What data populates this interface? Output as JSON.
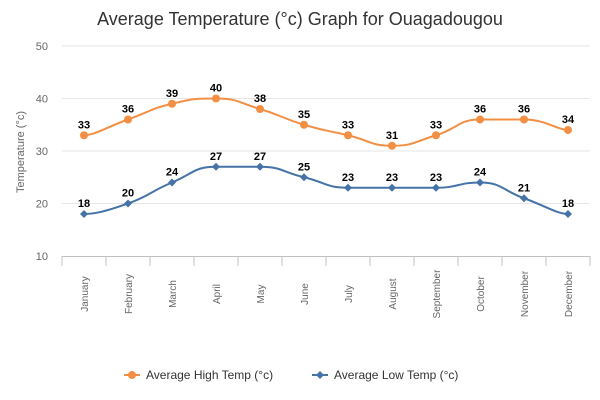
{
  "chart_data": {
    "type": "line",
    "title": "Average Temperature (°c) Graph for Ouagadougou",
    "xlabel": "",
    "ylabel": "Temperature (°c)",
    "ylim": [
      10,
      50
    ],
    "yticks": [
      10,
      20,
      30,
      40,
      50
    ],
    "grid": true,
    "legend_position": "bottom",
    "categories": [
      "January",
      "February",
      "March",
      "April",
      "May",
      "June",
      "July",
      "August",
      "September",
      "October",
      "November",
      "December"
    ],
    "series": [
      {
        "name": "Average High Temp (°c)",
        "color": "#f28f43",
        "marker": "circle",
        "values": [
          33,
          36,
          39,
          40,
          38,
          35,
          33,
          31,
          33,
          36,
          36,
          34
        ]
      },
      {
        "name": "Average Low Temp (°c)",
        "color": "#4572a7",
        "marker": "diamond",
        "values": [
          18,
          20,
          24,
          27,
          27,
          25,
          23,
          23,
          23,
          24,
          21,
          18
        ]
      }
    ]
  }
}
